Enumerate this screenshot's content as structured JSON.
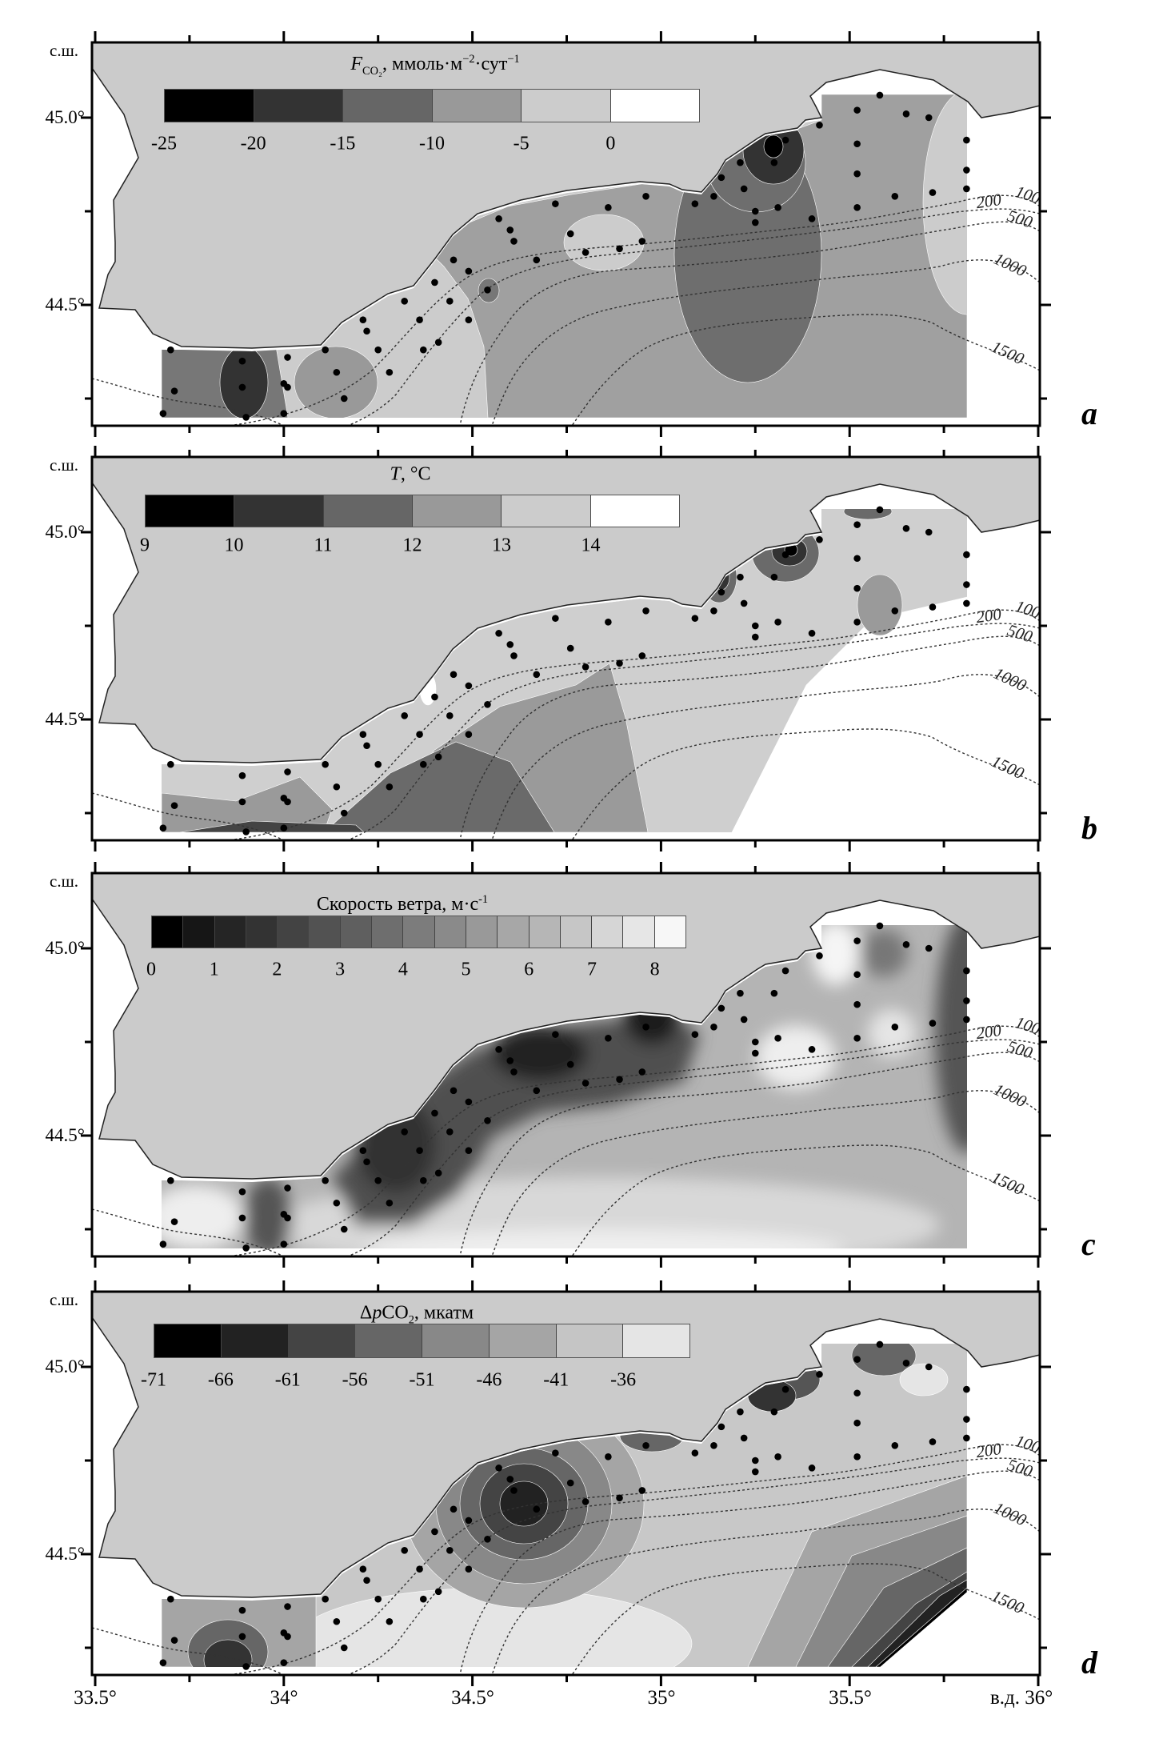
{
  "axes": {
    "lat_unit": "с.ш.",
    "lat_labels": [
      "45.0°",
      "44.5°"
    ],
    "lon_labels": [
      "33.5°",
      "34°",
      "34.5°",
      "35°",
      "35.5°",
      "в.д. 36°"
    ]
  },
  "panels": [
    {
      "letter": "a",
      "legend": {
        "title": [
          {
            "t": "F",
            "s": "it"
          },
          {
            "t": "CO₂",
            "s": "sub"
          },
          {
            "t": ", ммоль·м",
            "s": ""
          },
          {
            "t": "−2",
            "s": "sup"
          },
          {
            "t": "·сут",
            "s": ""
          },
          {
            "t": "−1",
            "s": "sup"
          }
        ],
        "colors": [
          "#000000",
          "#333333",
          "#666666",
          "#999999",
          "#cccccc",
          "#ffffff"
        ],
        "labels": [
          "-25",
          "-20",
          "-15",
          "-10",
          "-5",
          "0"
        ],
        "label_step": 1
      }
    },
    {
      "letter": "b",
      "legend": {
        "title": [
          {
            "t": "T",
            "s": "it"
          },
          {
            "t": ", °C",
            "s": ""
          }
        ],
        "colors": [
          "#000000",
          "#333333",
          "#666666",
          "#999999",
          "#cccccc",
          "#ffffff"
        ],
        "labels": [
          "9",
          "10",
          "11",
          "12",
          "13",
          "14"
        ],
        "label_step": 1
      }
    },
    {
      "letter": "c",
      "legend": {
        "title": [
          {
            "t": "Скорость ветра, м·с",
            "s": ""
          },
          {
            "t": "-1",
            "s": "sup"
          }
        ],
        "colors": [
          "#000000",
          "#161616",
          "#252525",
          "#333333",
          "#434343",
          "#525252",
          "#5f5f5f",
          "#6e6e6e",
          "#7c7c7c",
          "#8a8a8a",
          "#999999",
          "#a7a7a7",
          "#b6b6b6",
          "#c6c6c6",
          "#d6d6d6",
          "#e6e6e6",
          "#f7f7f7"
        ],
        "labels": [
          "0",
          "1",
          "2",
          "3",
          "4",
          "5",
          "6",
          "7",
          "8"
        ],
        "label_step": 2
      }
    },
    {
      "letter": "d",
      "legend": {
        "title": [
          {
            "t": "Δ",
            "s": ""
          },
          {
            "t": "p",
            "s": "it"
          },
          {
            "t": "CO",
            "s": ""
          },
          {
            "t": "2",
            "s": "sub"
          },
          {
            "t": ", мкатм",
            "s": ""
          }
        ],
        "colors": [
          "#000000",
          "#222222",
          "#444444",
          "#666666",
          "#888888",
          "#a5a5a5",
          "#c5c5c5",
          "#e5e5e5"
        ],
        "labels": [
          "-71",
          "-66",
          "-61",
          "-56",
          "-51",
          "-46",
          "-41",
          "-36"
        ],
        "label_step": 1
      }
    }
  ],
  "isobaths": [
    "100",
    "200",
    "500",
    "1000",
    "1500"
  ],
  "colors": {
    "land": "#cbcbcb",
    "sea": "#ffffff",
    "station": "#000000"
  },
  "stations": [
    [
      33.7,
      44.38
    ],
    [
      33.71,
      44.27
    ],
    [
      33.68,
      44.21
    ],
    [
      33.9,
      44.2
    ],
    [
      33.89,
      44.28
    ],
    [
      33.89,
      44.35
    ],
    [
      34.01,
      44.36
    ],
    [
      34.0,
      44.29
    ],
    [
      34.01,
      44.28
    ],
    [
      34.0,
      44.21
    ],
    [
      34.11,
      44.38
    ],
    [
      34.14,
      44.32
    ],
    [
      34.16,
      44.25
    ],
    [
      34.21,
      44.46
    ],
    [
      34.22,
      44.43
    ],
    [
      34.25,
      44.38
    ],
    [
      34.28,
      44.32
    ],
    [
      34.32,
      44.51
    ],
    [
      34.36,
      44.46
    ],
    [
      34.37,
      44.38
    ],
    [
      34.41,
      44.4
    ],
    [
      34.4,
      44.56
    ],
    [
      34.44,
      44.51
    ],
    [
      34.49,
      44.46
    ],
    [
      34.45,
      44.62
    ],
    [
      34.49,
      44.59
    ],
    [
      34.54,
      44.54
    ],
    [
      34.57,
      44.73
    ],
    [
      34.6,
      44.7
    ],
    [
      34.61,
      44.67
    ],
    [
      34.67,
      44.62
    ],
    [
      34.72,
      44.77
    ],
    [
      34.76,
      44.69
    ],
    [
      34.8,
      44.64
    ],
    [
      34.86,
      44.76
    ],
    [
      34.89,
      44.65
    ],
    [
      34.95,
      44.67
    ],
    [
      34.96,
      44.79
    ],
    [
      35.09,
      44.77
    ],
    [
      35.14,
      44.79
    ],
    [
      35.16,
      44.84
    ],
    [
      35.21,
      44.88
    ],
    [
      35.22,
      44.81
    ],
    [
      35.25,
      44.75
    ],
    [
      35.25,
      44.72
    ],
    [
      35.3,
      44.88
    ],
    [
      35.31,
      44.76
    ],
    [
      35.33,
      44.94
    ],
    [
      35.4,
      44.73
    ],
    [
      35.42,
      44.98
    ],
    [
      35.52,
      44.93
    ],
    [
      35.52,
      44.85
    ],
    [
      35.52,
      44.76
    ],
    [
      35.52,
      45.02
    ],
    [
      35.58,
      45.06
    ],
    [
      35.62,
      44.79
    ],
    [
      35.65,
      45.01
    ],
    [
      35.71,
      45.0
    ],
    [
      35.72,
      44.8
    ],
    [
      35.81,
      44.94
    ],
    [
      35.81,
      44.86
    ],
    [
      35.81,
      44.81
    ]
  ]
}
